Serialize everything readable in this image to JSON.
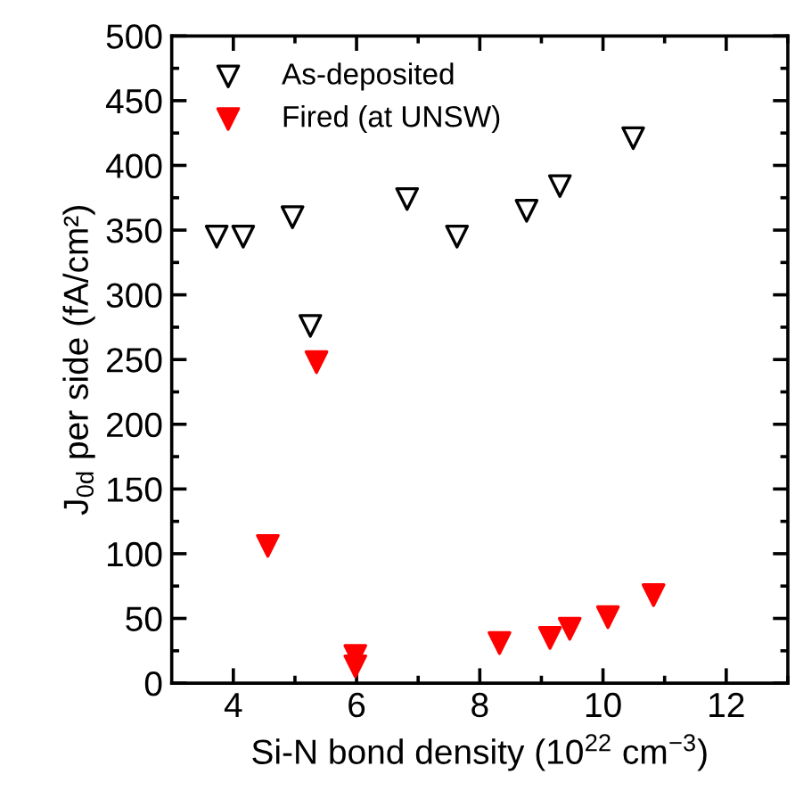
{
  "chart_data": {
    "type": "scatter",
    "xlabel": "Si-N bond density (10$^{22}$ cm$^{−3}$)",
    "ylabel": "J$_{0d}$ per side (fA/cm²)",
    "xlim": [
      3,
      13
    ],
    "xticks": [
      4,
      6,
      8,
      10,
      12
    ],
    "ylim": [
      0,
      500
    ],
    "yticks": [
      0,
      50,
      100,
      150,
      200,
      250,
      300,
      350,
      400,
      450,
      500
    ],
    "marker": "triangle",
    "grid": false,
    "legend": "top left",
    "series": [
      {
        "name": "As-deposited",
        "color": "#000000",
        "x": [
          3.73,
          4.16,
          4.96,
          5.25,
          6.82,
          7.63,
          8.76,
          9.3,
          10.49
        ],
        "values": [
          345,
          345,
          360,
          276,
          374,
          345,
          365,
          384,
          421
        ]
      },
      {
        "name": "Fired (at UNSW)",
        "color": "#ff0000",
        "x": [
          5.35,
          4.56,
          5.98,
          5.98,
          8.32,
          9.14,
          9.46,
          10.08,
          10.82
        ],
        "values": [
          248,
          106,
          21,
          13,
          31,
          35,
          42,
          51,
          68
        ]
      }
    ]
  }
}
